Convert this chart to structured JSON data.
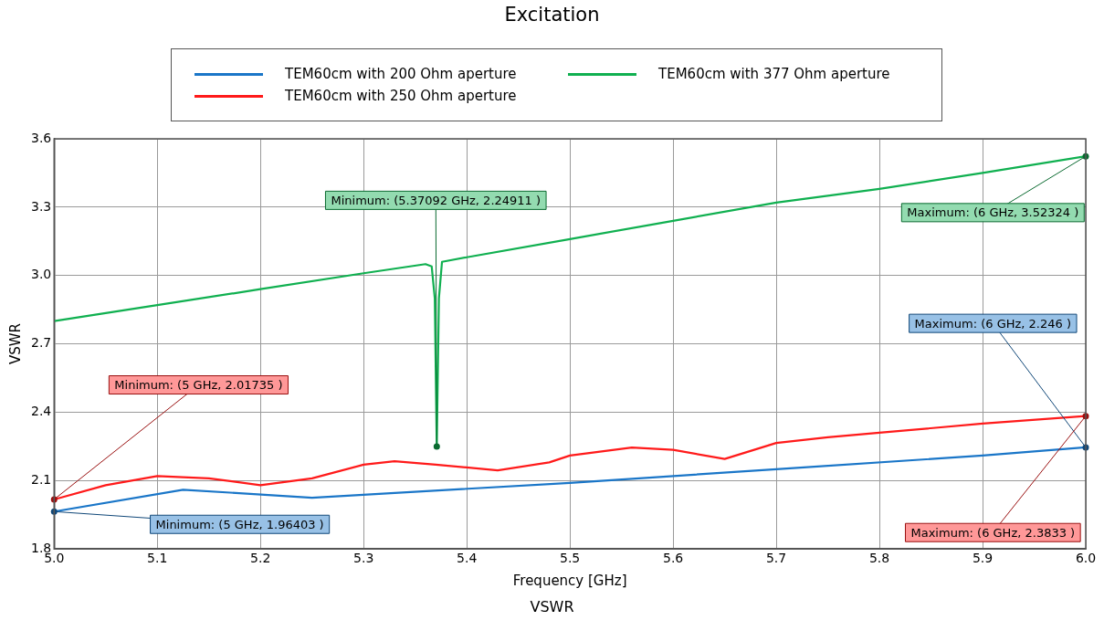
{
  "chart_data": {
    "type": "line",
    "title": "Excitation",
    "xlabel": "Frequency [GHz]",
    "ylabel": "VSWR",
    "xlim": [
      5.0,
      6.0
    ],
    "xticks": [
      {
        "value": 5.0,
        "label": "5.0"
      },
      5.1,
      5.2,
      5.3,
      5.4,
      5.5,
      5.6,
      5.7,
      5.8,
      5.9,
      {
        "value": 6.0,
        "label": "6.0"
      }
    ],
    "ylim": [
      1.8,
      3.6
    ],
    "yticks": [
      1.8,
      2.1,
      2.4,
      2.7,
      {
        "value": 3.0,
        "label": "3.0"
      },
      3.3,
      3.6
    ],
    "grid": true,
    "legend": "top",
    "marker": "none",
    "line_style": "solid",
    "series": [
      {
        "name": "TEM60cm with 200 Ohm aperture",
        "color": "#1a76c8",
        "x": [
          5.0,
          5.125,
          5.25,
          5.5,
          5.7,
          5.9,
          6.0
        ],
        "values": [
          1.96403,
          2.06,
          2.025,
          2.09,
          2.15,
          2.21,
          2.246
        ]
      },
      {
        "name": "TEM60cm with 250 Ohm aperture",
        "color": "#ff1a1a",
        "x": [
          5.0,
          5.05,
          5.1,
          5.15,
          5.2,
          5.25,
          5.3,
          5.33,
          5.37,
          5.43,
          5.48,
          5.5,
          5.56,
          5.6,
          5.65,
          5.7,
          5.75,
          5.8,
          5.9,
          6.0
        ],
        "values": [
          2.01735,
          2.08,
          2.12,
          2.11,
          2.08,
          2.11,
          2.17,
          2.185,
          2.17,
          2.145,
          2.18,
          2.21,
          2.245,
          2.235,
          2.195,
          2.265,
          2.29,
          2.31,
          2.35,
          2.3833
        ]
      },
      {
        "name": "TEM60cm with 377 Ohm aperture",
        "color": "#10b050",
        "x": [
          5.0,
          5.1,
          5.2,
          5.3,
          5.36,
          5.366,
          5.369,
          5.37092,
          5.373,
          5.376,
          5.4,
          5.5,
          5.6,
          5.7,
          5.8,
          5.9,
          6.0
        ],
        "values": [
          2.8,
          2.87,
          2.94,
          3.01,
          3.05,
          3.04,
          2.9,
          2.24911,
          2.9,
          3.06,
          3.08,
          3.16,
          3.24,
          3.32,
          3.38,
          3.45,
          3.52324
        ]
      }
    ],
    "annotations": [
      {
        "text": "Minimum: (5 GHz, 1.96403 )",
        "x": 5.0,
        "y": 1.96403
      },
      {
        "text": "Maximum: (6 GHz, 2.246 )",
        "x": 6.0,
        "y": 2.246
      },
      {
        "text": "Minimum: (5 GHz, 2.01735 )",
        "x": 5.0,
        "y": 2.01735
      },
      {
        "text": "Maximum: (6 GHz, 2.3833 )",
        "x": 6.0,
        "y": 2.3833
      },
      {
        "text": "Minimum: (5.37092 GHz, 2.24911 )",
        "x": 5.37092,
        "y": 2.24911
      },
      {
        "text": "Maximum: (6 GHz, 3.52324 )",
        "x": 6.0,
        "y": 3.52324
      },
      "VSWR"
    ]
  }
}
